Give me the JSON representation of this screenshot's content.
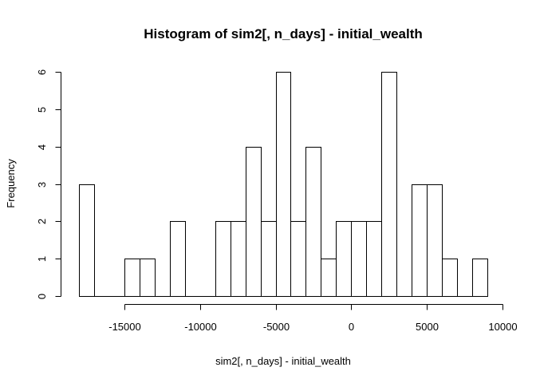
{
  "chart_data": {
    "type": "bar",
    "title": "Histogram of sim2[, n_days] - initial_wealth",
    "xlabel": "sim2[, n_days] - initial_wealth",
    "ylabel": "Frequency",
    "bin_width": 1000,
    "bins_start": [
      -18000,
      -17000,
      -16000,
      -15000,
      -14000,
      -13000,
      -12000,
      -11000,
      -10000,
      -9000,
      -8000,
      -7000,
      -6000,
      -5000,
      -4000,
      -3000,
      -2000,
      -1000,
      0,
      1000,
      2000,
      3000,
      4000,
      5000,
      6000,
      7000,
      8000
    ],
    "values": [
      3,
      0,
      0,
      1,
      1,
      0,
      2,
      0,
      0,
      2,
      2,
      4,
      2,
      6,
      2,
      4,
      1,
      2,
      2,
      2,
      6,
      0,
      3,
      3,
      1,
      0,
      1
    ],
    "xlim": [
      -18000,
      9000
    ],
    "ylim": [
      0,
      6
    ],
    "x_ticks": [
      -15000,
      -10000,
      -5000,
      0,
      5000,
      10000
    ],
    "y_ticks": [
      0,
      1,
      2,
      3,
      4,
      5,
      6
    ],
    "grid": false,
    "colors": {
      "bar_fill": "#ffffff",
      "bar_stroke": "#000000"
    }
  }
}
